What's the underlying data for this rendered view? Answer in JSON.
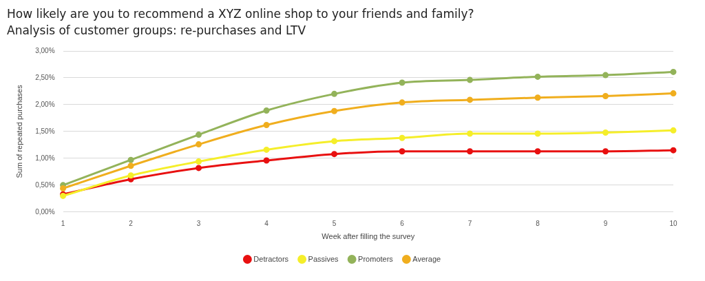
{
  "chart_data": {
    "type": "line",
    "title": "How likely are you to recommend a XYZ online shop to your friends and family?",
    "subtitle": "Analysis of customer groups: re-purchases and LTV",
    "xlabel": "Week after filling the survey",
    "ylabel": "Sum of repeated purchases",
    "categories": [
      "1",
      "2",
      "3",
      "4",
      "5",
      "6",
      "7",
      "8",
      "9",
      "10"
    ],
    "series": [
      {
        "name": "Detractors",
        "color": "#e81010",
        "values": [
          0.33,
          0.61,
          0.82,
          0.96,
          1.08,
          1.13,
          1.13,
          1.13,
          1.13,
          1.15
        ]
      },
      {
        "name": "Passives",
        "color": "#f5ee2a",
        "values": [
          0.3,
          0.68,
          0.94,
          1.16,
          1.32,
          1.38,
          1.46,
          1.46,
          1.48,
          1.52
        ]
      },
      {
        "name": "Promoters",
        "color": "#93b35a",
        "values": [
          0.5,
          0.97,
          1.44,
          1.89,
          2.2,
          2.41,
          2.46,
          2.52,
          2.55,
          2.61
        ]
      },
      {
        "name": "Average",
        "color": "#f0ae1e",
        "values": [
          0.44,
          0.86,
          1.26,
          1.62,
          1.88,
          2.04,
          2.09,
          2.13,
          2.16,
          2.21
        ]
      }
    ],
    "ylim": [
      0,
      3
    ],
    "yticks": [
      {
        "value": 0,
        "label": "0,00%"
      },
      {
        "value": 0.5,
        "label": "0,50%"
      },
      {
        "value": 1,
        "label": "1,00%"
      },
      {
        "value": 1.5,
        "label": "1,50%"
      },
      {
        "value": 2,
        "label": "2,00%"
      },
      {
        "value": 2.5,
        "label": "2,50%"
      },
      {
        "value": 3,
        "label": "3,00%"
      }
    ],
    "grid": "y",
    "legend": "bottom",
    "marker": "circle",
    "line_style": "solid"
  }
}
